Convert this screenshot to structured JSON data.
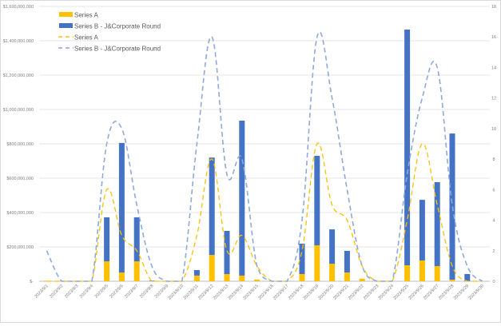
{
  "chart_data": {
    "type": "bar",
    "title": "",
    "categories": [
      "2023/9/1",
      "2023/9/2",
      "2023/9/3",
      "2023/9/4",
      "2023/9/5",
      "2023/9/6",
      "2023/9/7",
      "2023/9/8",
      "2023/9/9",
      "2023/9/10",
      "2023/9/11",
      "2023/9/12",
      "2023/9/13",
      "2023/9/14",
      "2023/9/15",
      "2023/9/16",
      "2023/9/17",
      "2023/9/18",
      "2023/9/19",
      "2023/9/20",
      "2023/9/21",
      "2023/9/22",
      "2023/9/23",
      "2023/9/24",
      "2023/9/25",
      "2023/9/26",
      "2023/9/27",
      "2023/9/28",
      "2023/9/29",
      "2023/9/30"
    ],
    "bar_series": [
      {
        "name": "Series A",
        "color": "#FFC000",
        "values": [
          3000000,
          0,
          0,
          0,
          116000000,
          51000000,
          116000000,
          0,
          0,
          0,
          33000000,
          153000000,
          42000000,
          33000000,
          10000000,
          0,
          0,
          42000000,
          209000000,
          102000000,
          51000000,
          15000000,
          0,
          0,
          93000000,
          121000000,
          88000000,
          9000000,
          0,
          0
        ]
      },
      {
        "name": "Series B - J&Corporate Round",
        "color": "#4472C4",
        "values": [
          0,
          0,
          0,
          0,
          256000000,
          754000000,
          256000000,
          3000000,
          0,
          0,
          32000000,
          567000000,
          251000000,
          902000000,
          0,
          0,
          0,
          177000000,
          521000000,
          200000000,
          126000000,
          0,
          0,
          0,
          1372000000,
          353000000,
          489000000,
          851000000,
          42000000,
          0
        ]
      }
    ],
    "line_series": [
      {
        "name": "Series A",
        "color": "#FFC000",
        "axis": "right",
        "values": [
          0,
          0,
          0,
          0,
          6,
          3,
          2,
          0,
          0,
          0,
          3,
          8,
          2,
          3,
          1,
          0,
          0,
          2,
          9,
          5,
          4,
          1,
          0,
          0,
          4,
          9,
          5,
          1,
          0,
          0
        ]
      },
      {
        "name": "Series B - J&Corporate Round",
        "color": "#8EA9DB",
        "axis": "right",
        "values": [
          2,
          0,
          0,
          0,
          9,
          10,
          5,
          1,
          0,
          0,
          9,
          16,
          7,
          8,
          1,
          0,
          0,
          4,
          16,
          12,
          6,
          1,
          0,
          0,
          7,
          12,
          14,
          5,
          1,
          0
        ]
      }
    ],
    "left_axis": {
      "min": 0,
      "max": 1600000000,
      "ticks": [
        "$-",
        "$200,000,000",
        "$400,000,000",
        "$600,000,000",
        "$800,000,000",
        "$1,000,000,000",
        "$1,200,000,000",
        "$1,400,000,000",
        "$1,600,000,000"
      ]
    },
    "right_axis": {
      "min": 0,
      "max": 18,
      "ticks": [
        "0",
        "2",
        "4",
        "6",
        "8",
        "10",
        "12",
        "14",
        "16",
        "18"
      ]
    },
    "grid": true,
    "legend": {
      "placement": "top-left",
      "entries": [
        "Series A",
        "Series B - J&Corporate Round",
        "Series A",
        "Series B - J&Corporate Round"
      ]
    },
    "xlabel": "",
    "ylabel": ""
  }
}
